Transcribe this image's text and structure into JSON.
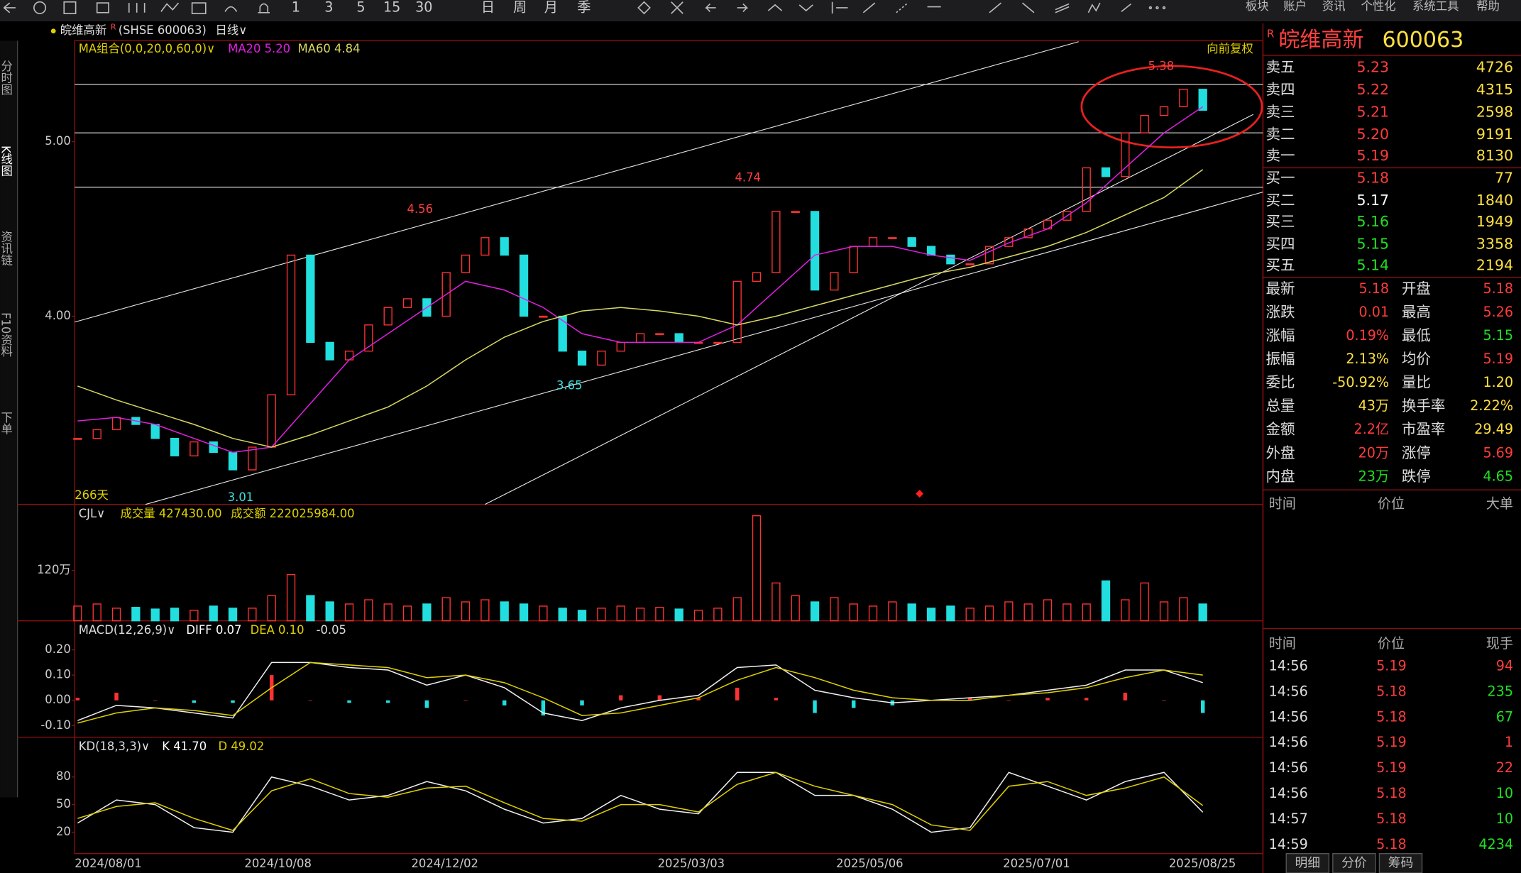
{
  "toolbar_menu": [
    "板块",
    "账户",
    "资讯",
    "个性化",
    "系统工具",
    "帮助"
  ],
  "toolbar_periods": [
    "1",
    "3",
    "5",
    "15",
    "30",
    "日",
    "周",
    "月",
    "季"
  ],
  "header": {
    "name": "皖维高新",
    "mark": "R",
    "code_label": "(SHSE 600063)",
    "period": "日线∨"
  },
  "side_tabs": [
    "分时图",
    "K线图",
    "资讯链",
    "F10资料",
    "下单"
  ],
  "x_axis": [
    "2024/08/01",
    "2024/10/08",
    "2024/12/02",
    "2025/03/03",
    "2025/05/06",
    "2025/07/01",
    "2025/08/25"
  ],
  "chart_data": [
    {
      "type": "candlestick",
      "legend": [
        "MA组合(0,0,20,0,60,0)∨",
        "MA20 5.20",
        "MA60 4.84"
      ],
      "adjust_label": "向前复权",
      "days_label": "266天",
      "closes": [
        3.3,
        3.35,
        3.42,
        3.38,
        3.3,
        3.2,
        3.28,
        3.22,
        3.12,
        3.25,
        3.55,
        4.35,
        3.85,
        3.75,
        3.8,
        3.95,
        4.05,
        4.1,
        4.0,
        4.25,
        4.35,
        4.45,
        4.35,
        4.0,
        4.0,
        3.8,
        3.72,
        3.8,
        3.85,
        3.9,
        3.9,
        3.85,
        3.85,
        3.85,
        4.2,
        4.25,
        4.6,
        4.6,
        4.15,
        4.25,
        4.4,
        4.45,
        4.45,
        4.4,
        4.35,
        4.3,
        4.3,
        4.4,
        4.45,
        4.5,
        4.55,
        4.6,
        4.85,
        4.8,
        5.05,
        5.15,
        5.2,
        5.3,
        5.18
      ],
      "ma20": [
        3.4,
        3.42,
        3.38,
        3.3,
        3.22,
        3.25,
        3.5,
        3.75,
        3.9,
        4.05,
        4.2,
        4.15,
        4.05,
        3.9,
        3.85,
        3.85,
        3.85,
        3.95,
        4.15,
        4.35,
        4.4,
        4.4,
        4.35,
        4.32,
        4.42,
        4.5,
        4.65,
        4.85,
        5.05,
        5.2
      ],
      "ma60": [
        3.6,
        3.52,
        3.45,
        3.38,
        3.3,
        3.25,
        3.32,
        3.4,
        3.48,
        3.6,
        3.75,
        3.88,
        3.97,
        4.03,
        4.05,
        4.03,
        4.0,
        3.95,
        4.0,
        4.06,
        4.12,
        4.18,
        4.24,
        4.28,
        4.34,
        4.4,
        4.48,
        4.58,
        4.68,
        4.84
      ],
      "ylim": [
        2.922,
        5.578
      ],
      "yticks": [
        {
          "value": 5,
          "label": "5.00"
        },
        {
          "value": 4,
          "label": "4.00"
        }
      ],
      "annotations": [
        {
          "value": 5.38,
          "color": "#ff4040"
        },
        {
          "value": 4.74,
          "color": "#ff4040"
        },
        {
          "value": 4.56,
          "color": "#ff4040"
        },
        {
          "value": 3.65,
          "color": "#40e0e0"
        },
        {
          "value": 3.01,
          "color": "#40e0e0"
        }
      ],
      "up_color": "#ff3232",
      "down_color": "#22dede",
      "ma20_color": "#e020e0",
      "ma60_color": "#d8d860"
    },
    {
      "type": "bar",
      "legend": [
        "CJL∨",
        "成交量 427430.00",
        "成交额 222025984.00"
      ],
      "values": [
        35,
        40,
        30,
        32,
        28,
        30,
        25,
        35,
        30,
        30,
        60,
        110,
        60,
        45,
        40,
        50,
        40,
        35,
        40,
        55,
        45,
        50,
        45,
        40,
        35,
        30,
        25,
        30,
        35,
        30,
        32,
        28,
        25,
        30,
        55,
        250,
        90,
        60,
        45,
        55,
        40,
        35,
        45,
        40,
        30,
        35,
        30,
        35,
        45,
        40,
        50,
        40,
        40,
        95,
        50,
        90,
        45,
        55,
        40
      ],
      "ylim": [
        0,
        277
      ],
      "yticks": [
        {
          "value": 120,
          "label": "120万"
        }
      ]
    },
    {
      "type": "macd",
      "legend": [
        "MACD(12,26,9)∨",
        "DIFF 0.07",
        "DEA 0.10",
        "-0.05"
      ],
      "diff": [
        -0.08,
        -0.02,
        -0.03,
        -0.05,
        -0.07,
        0.15,
        0.15,
        0.13,
        0.12,
        0.06,
        0.1,
        0.05,
        -0.05,
        -0.08,
        -0.03,
        0.0,
        0.02,
        0.13,
        0.14,
        0.04,
        0.01,
        -0.01,
        0.0,
        0.01,
        0.02,
        0.04,
        0.06,
        0.12,
        0.12,
        0.07
      ],
      "dea": [
        -0.09,
        -0.05,
        -0.03,
        -0.04,
        -0.06,
        0.05,
        0.15,
        0.14,
        0.13,
        0.09,
        0.1,
        0.07,
        0.01,
        -0.06,
        -0.05,
        -0.02,
        0.01,
        0.08,
        0.13,
        0.09,
        0.04,
        0.01,
        0.0,
        0.0,
        0.02,
        0.03,
        0.05,
        0.09,
        0.12,
        0.1
      ],
      "hist": [
        0.01,
        0.03,
        0.0,
        -0.01,
        -0.01,
        0.1,
        0.0,
        -0.01,
        -0.01,
        -0.03,
        0.0,
        -0.02,
        -0.06,
        -0.02,
        0.02,
        0.02,
        0.01,
        0.05,
        0.01,
        -0.05,
        -0.03,
        -0.02,
        0.0,
        0.01,
        0.0,
        0.01,
        0.01,
        0.03,
        0.0,
        -0.05
      ],
      "ylim": [
        -0.146,
        0.315
      ],
      "yticks": [
        {
          "value": 0.2,
          "label": "0.20"
        },
        {
          "value": 0.1,
          "label": "0.10"
        },
        {
          "value": 0,
          "label": "0.00"
        },
        {
          "value": -0.1,
          "label": "-0.10"
        }
      ]
    },
    {
      "type": "kd",
      "legend": [
        "KD(18,3,3)∨",
        "K 41.70",
        "D 49.02"
      ],
      "k": [
        30,
        55,
        50,
        25,
        20,
        80,
        70,
        55,
        60,
        75,
        65,
        45,
        30,
        35,
        60,
        45,
        40,
        85,
        85,
        60,
        60,
        45,
        20,
        25,
        85,
        70,
        55,
        75,
        85,
        41.7
      ],
      "d": [
        35,
        48,
        52,
        35,
        22,
        65,
        78,
        62,
        58,
        68,
        70,
        52,
        35,
        32,
        50,
        50,
        42,
        72,
        85,
        70,
        60,
        50,
        28,
        22,
        70,
        75,
        60,
        68,
        80,
        49.02
      ],
      "ylim": [
        -3.2,
        123.2
      ],
      "yticks": [
        80,
        50,
        20
      ]
    }
  ],
  "quote": {
    "mark": "R",
    "name": "皖维高新",
    "code": "600063",
    "book": [
      [
        "卖五",
        "5.23",
        "4726",
        "#ff3c3c"
      ],
      [
        "卖四",
        "5.22",
        "4315",
        "#ff3c3c"
      ],
      [
        "卖三",
        "5.21",
        "2598",
        "#ff3c3c"
      ],
      [
        "卖二",
        "5.20",
        "9191",
        "#ff3c3c"
      ],
      [
        "卖一",
        "5.19",
        "8130",
        "#ff3c3c"
      ],
      [
        "买一",
        "5.18",
        "77",
        "#ff3c3c"
      ],
      [
        "买二",
        "5.17",
        "1840",
        "#ffffff"
      ],
      [
        "买三",
        "5.16",
        "1949",
        "#20e020"
      ],
      [
        "买四",
        "5.15",
        "3358",
        "#20e020"
      ],
      [
        "买五",
        "5.14",
        "2194",
        "#20e020"
      ]
    ],
    "stats": [
      [
        "最新",
        "5.18",
        "开盘",
        "5.18",
        "#ff3c3c",
        "#ff3c3c"
      ],
      [
        "涨跌",
        "0.01",
        "最高",
        "5.26",
        "#ff3c3c",
        "#ff3c3c"
      ],
      [
        "涨幅",
        "0.19%",
        "最低",
        "5.15",
        "#ff3c3c",
        "#20e020"
      ],
      [
        "振幅",
        "2.13%",
        "均价",
        "5.19",
        "#ffe040",
        "#ff3c3c"
      ],
      [
        "委比",
        "-50.92%",
        "量比",
        "1.20",
        "#ffe040",
        "#ffe040"
      ],
      [
        "总量",
        "43万",
        "换手率",
        "2.22%",
        "#ffe040",
        "#ffe040"
      ],
      [
        "金额",
        "2.2亿",
        "市盈率",
        "29.49",
        "#ff3c3c",
        "#ffe040"
      ],
      [
        "外盘",
        "20万",
        "涨停",
        "5.69",
        "#ff3c3c",
        "#ff3c3c"
      ],
      [
        "内盘",
        "23万",
        "跌停",
        "4.65",
        "#20e020",
        "#20e020"
      ]
    ],
    "big_header": [
      "时间",
      "价位",
      "大单"
    ],
    "tick_header": [
      "时间",
      "价位",
      "现手"
    ],
    "ticks": [
      [
        "14:56",
        "5.19",
        "94",
        "#ff3c3c"
      ],
      [
        "14:56",
        "5.18",
        "235",
        "#20e020"
      ],
      [
        "14:56",
        "5.18",
        "67",
        "#20e020"
      ],
      [
        "14:56",
        "5.19",
        "1",
        "#ff3c3c"
      ],
      [
        "14:56",
        "5.19",
        "22",
        "#ff3c3c"
      ],
      [
        "14:56",
        "5.18",
        "10",
        "#20e020"
      ],
      [
        "14:57",
        "5.18",
        "10",
        "#20e020"
      ],
      [
        "14:59",
        "5.18",
        "4234",
        "#20e020"
      ]
    ],
    "tabs": [
      "明细",
      "分价",
      "筹码"
    ]
  }
}
